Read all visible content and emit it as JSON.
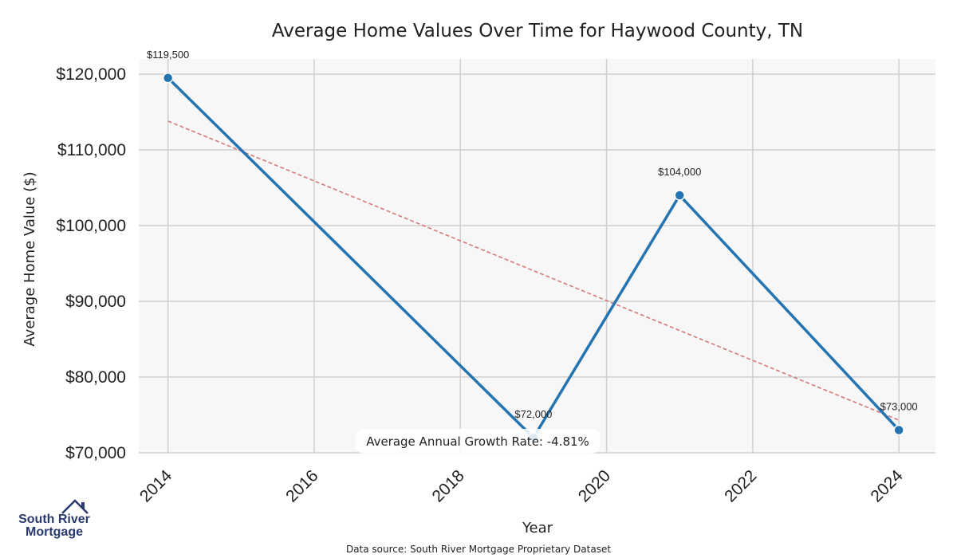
{
  "chart_data": {
    "type": "line",
    "title": "Average Home Values Over Time for Haywood County, TN",
    "xlabel": "Year",
    "ylabel": "Average Home Value ($)",
    "x": [
      2014,
      2019,
      2021,
      2024
    ],
    "series": [
      {
        "values": [
          119500,
          72000,
          104000,
          73000
        ],
        "color": "#2474b1"
      }
    ],
    "data_labels": [
      "$119,500",
      "$72,000",
      "$104,000",
      "$73,000"
    ],
    "trendline": {
      "style": "dashed",
      "color": "#d47a7a",
      "start": [
        2014,
        113800
      ],
      "end": [
        2024,
        74300
      ]
    },
    "xticks": [
      2014,
      2016,
      2018,
      2020,
      2022,
      2024
    ],
    "xtick_labels": [
      "2014",
      "2016",
      "2018",
      "2020",
      "2022",
      "2024"
    ],
    "yticks": [
      70000,
      80000,
      90000,
      100000,
      110000,
      120000
    ],
    "ytick_labels": [
      "$70,000",
      "$80,000",
      "$90,000",
      "$100,000",
      "$110,000",
      "$120,000"
    ],
    "xlim": [
      2013.6,
      2024.5
    ],
    "ylim": [
      70000,
      122000
    ],
    "grid": true,
    "annotation": "Average Annual Growth Rate: -4.81%",
    "source": "Data source: South River Mortgage Proprietary Dataset"
  },
  "logo": {
    "line1": "South River",
    "line2": "Mortgage",
    "color": "#2a3a6e"
  }
}
